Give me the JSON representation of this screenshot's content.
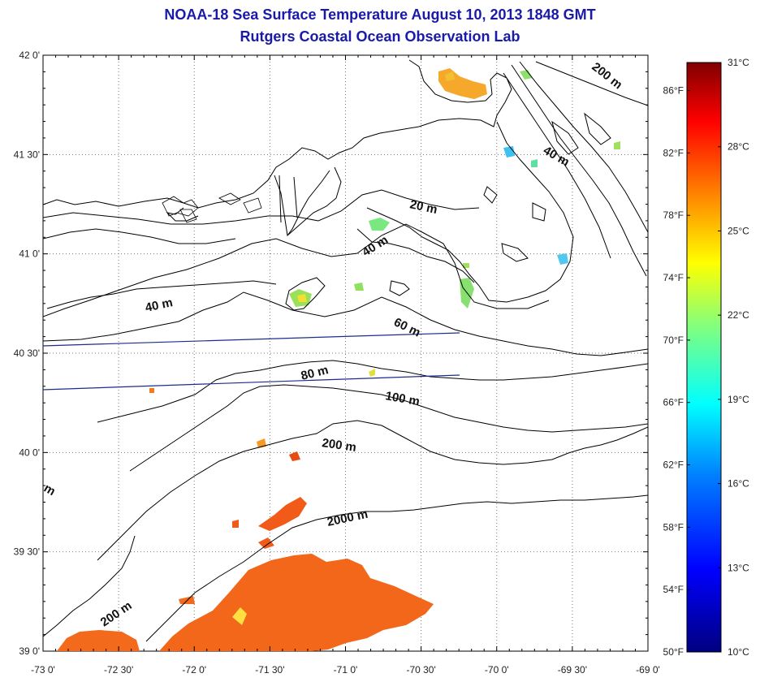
{
  "title": {
    "line1": "NOAA-18 Sea Surface Temperature August 10, 2013 1848 GMT",
    "line2": "Rutgers Coastal Ocean Observation Lab"
  },
  "map": {
    "lon_range": [
      -73,
      -69
    ],
    "lat_range": [
      39,
      42
    ],
    "lon_ticks": [
      "-73 0'",
      "-72 30'",
      "-72 0'",
      "-71 30'",
      "-71 0'",
      "-70 30'",
      "-70 0'",
      "-69 30'",
      "-69 0'"
    ],
    "lat_ticks": [
      "42 0'",
      "41 30'",
      "41 0'",
      "40 30'",
      "40 0'",
      "39 30'",
      "39 0'"
    ],
    "grid": true,
    "isobath_labels": [
      "20 m",
      "40 m",
      "40 m",
      "40 m",
      "60 m",
      "80 m",
      "100 m",
      "200 m",
      "200 m",
      "200 m",
      "2000 m",
      "m"
    ]
  },
  "colorbar": {
    "celsius_labels": [
      "31°C",
      "28°C",
      "25°C",
      "22°C",
      "19°C",
      "16°C",
      "13°C",
      "10°C"
    ],
    "fahrenheit_labels": [
      "86°F",
      "82°F",
      "78°F",
      "74°F",
      "70°F",
      "66°F",
      "62°F",
      "58°F",
      "54°F",
      "50°F"
    ],
    "range_c": [
      10,
      31
    ],
    "colors": [
      "#000080",
      "#0000ff",
      "#0080ff",
      "#00ffff",
      "#80ff80",
      "#ffff00",
      "#ff8000",
      "#ff0000",
      "#800000"
    ]
  },
  "colors": {
    "title": "#1a1aa8",
    "warm_patch": "#f26a1b",
    "line_blue": "#1c2c8c"
  }
}
